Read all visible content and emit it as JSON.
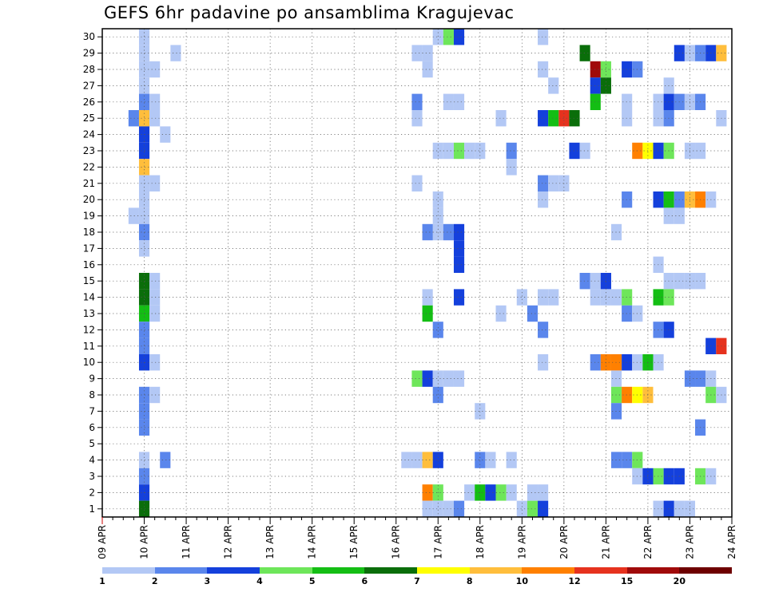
{
  "title": "GEFS 6hr padavine po ansamblima Kragujevac",
  "colors": {
    "1": "#b3c8f5",
    "2": "#5a86ec",
    "3": "#1440dc",
    "4": "#6ee65a",
    "5": "#14be14",
    "6": "#0a6e0a",
    "7": "#ffff00",
    "8": "#ffbe3c",
    "9": "#ff8000",
    "10": "#e6321e",
    "11": "#a00a0a",
    "12": "#6e0000"
  },
  "colorbar": {
    "colors": [
      "#b3c8f5",
      "#5a86ec",
      "#1440dc",
      "#6ee65a",
      "#14be14",
      "#0a6e0a",
      "#ffff00",
      "#ffbe3c",
      "#ff8000",
      "#e6321e",
      "#a00a0a",
      "#6e0000"
    ],
    "labels": [
      "1",
      "2",
      "3",
      "4",
      "5",
      "6",
      "7",
      "8",
      "10",
      "12",
      "15",
      "20"
    ]
  },
  "chart_data": {
    "type": "heatmap",
    "x_ticks": [
      "09 APR",
      "10 APR",
      "11 APR",
      "12 APR",
      "13 APR",
      "14 APR",
      "15 APR",
      "16 APR",
      "17 APR",
      "18 APR",
      "19 APR",
      "20 APR",
      "21 APR",
      "22 APR",
      "23 APR",
      "24 APR"
    ],
    "y_ticks": [
      "1",
      "2",
      "3",
      "4",
      "5",
      "6",
      "7",
      "8",
      "9",
      "10",
      "11",
      "12",
      "13",
      "14",
      "15",
      "16",
      "17",
      "18",
      "19",
      "20",
      "21",
      "22",
      "23",
      "24",
      "25",
      "26",
      "27",
      "28",
      "29",
      "30"
    ],
    "xlim": [
      "09 APR",
      "24 APR"
    ],
    "ylim": [
      0.5,
      30.5
    ],
    "time_step_hours": 6,
    "legend": "colorbar-bottom",
    "grid": true,
    "cells": [
      [
        "10 APR",
        30,
        1
      ],
      [
        "10 APR",
        29,
        1
      ],
      [
        "10 APR 18Z",
        29,
        1
      ],
      [
        "10 APR",
        28,
        1
      ],
      [
        "10 APR 06Z",
        28,
        1
      ],
      [
        "10 APR",
        27,
        1
      ],
      [
        "10 APR",
        26,
        2
      ],
      [
        "10 APR 06Z",
        26,
        1
      ],
      [
        "09 APR 18Z",
        25,
        2
      ],
      [
        "10 APR",
        25,
        8
      ],
      [
        "10 APR 06Z",
        25,
        1
      ],
      [
        "10 APR",
        24,
        3
      ],
      [
        "10 APR 12Z",
        24,
        1
      ],
      [
        "10 APR",
        23,
        3
      ],
      [
        "10 APR",
        22,
        8
      ],
      [
        "10 APR",
        21,
        1
      ],
      [
        "10 APR 06Z",
        21,
        1
      ],
      [
        "10 APR",
        20,
        1
      ],
      [
        "09 APR 18Z",
        19,
        1
      ],
      [
        "10 APR",
        19,
        1
      ],
      [
        "10 APR",
        18,
        2
      ],
      [
        "10 APR",
        17,
        1
      ],
      [
        "10 APR",
        15,
        6
      ],
      [
        "10 APR 06Z",
        15,
        1
      ],
      [
        "10 APR",
        14,
        6
      ],
      [
        "10 APR 06Z",
        14,
        1
      ],
      [
        "10 APR",
        13,
        5
      ],
      [
        "10 APR 06Z",
        13,
        1
      ],
      [
        "10 APR",
        12,
        2
      ],
      [
        "10 APR",
        11,
        2
      ],
      [
        "10 APR",
        10,
        3
      ],
      [
        "10 APR 06Z",
        10,
        1
      ],
      [
        "10 APR",
        8,
        2
      ],
      [
        "10 APR 06Z",
        8,
        1
      ],
      [
        "10 APR",
        7,
        2
      ],
      [
        "10 APR",
        6,
        2
      ],
      [
        "10 APR",
        4,
        1
      ],
      [
        "10 APR 12Z",
        4,
        2
      ],
      [
        "10 APR",
        3,
        2
      ],
      [
        "10 APR",
        2,
        3
      ],
      [
        "10 APR",
        1,
        6
      ],
      [
        "16 APR 12Z",
        29,
        1
      ],
      [
        "16 APR 18Z",
        29,
        1
      ],
      [
        "16 APR 18Z",
        28,
        1
      ],
      [
        "16 APR 12Z",
        26,
        2
      ],
      [
        "16 APR 12Z",
        25,
        1
      ],
      [
        "16 APR 12Z",
        21,
        1
      ],
      [
        "16 APR 12Z",
        9,
        4
      ],
      [
        "16 APR 06Z",
        4,
        1
      ],
      [
        "16 APR 12Z",
        4,
        1
      ],
      [
        "17 APR",
        30,
        1
      ],
      [
        "17 APR 06Z",
        30,
        4
      ],
      [
        "17 APR 12Z",
        30,
        3
      ],
      [
        "17 APR 06Z",
        26,
        1
      ],
      [
        "17 APR 12Z",
        26,
        1
      ],
      [
        "17 APR",
        23,
        1
      ],
      [
        "17 APR 06Z",
        23,
        1
      ],
      [
        "17 APR 12Z",
        23,
        4
      ],
      [
        "17 APR 18Z",
        23,
        1
      ],
      [
        "18 APR",
        23,
        1
      ],
      [
        "17 APR",
        20,
        1
      ],
      [
        "17 APR",
        19,
        1
      ],
      [
        "17 APR",
        18,
        1
      ],
      [
        "16 APR 18Z",
        18,
        2
      ],
      [
        "17 APR 06Z",
        18,
        2
      ],
      [
        "17 APR 12Z",
        18,
        3
      ],
      [
        "17 APR 12Z",
        17,
        3
      ],
      [
        "17 APR 12Z",
        16,
        3
      ],
      [
        "16 APR 18Z",
        14,
        1
      ],
      [
        "17 APR 12Z",
        14,
        3
      ],
      [
        "16 APR 18Z",
        13,
        5
      ],
      [
        "17 APR",
        12,
        2
      ],
      [
        "16 APR 18Z",
        9,
        3
      ],
      [
        "17 APR",
        9,
        1
      ],
      [
        "17 APR 06Z",
        9,
        1
      ],
      [
        "17 APR 12Z",
        9,
        1
      ],
      [
        "17 APR",
        8,
        2
      ],
      [
        "16 APR 18Z",
        4,
        8
      ],
      [
        "17 APR",
        4,
        3
      ],
      [
        "16 APR 18Z",
        2,
        9
      ],
      [
        "17 APR",
        2,
        4
      ],
      [
        "16 APR 18Z",
        1,
        1
      ],
      [
        "17 APR",
        1,
        1
      ],
      [
        "17 APR 06Z",
        1,
        1
      ],
      [
        "17 APR 12Z",
        1,
        2
      ],
      [
        "18 APR 12Z",
        25,
        1
      ],
      [
        "18 APR 18Z",
        23,
        2
      ],
      [
        "18 APR 18Z",
        22,
        1
      ],
      [
        "18 APR 12Z",
        13,
        1
      ],
      [
        "19 APR",
        14,
        1
      ],
      [
        "18 APR",
        7,
        1
      ],
      [
        "18 APR",
        4,
        2
      ],
      [
        "18 APR 06Z",
        4,
        1
      ],
      [
        "18 APR 18Z",
        4,
        1
      ],
      [
        "17 APR 18Z",
        2,
        1
      ],
      [
        "18 APR",
        2,
        5
      ],
      [
        "18 APR 06Z",
        2,
        3
      ],
      [
        "18 APR 12Z",
        2,
        4
      ],
      [
        "18 APR 18Z",
        2,
        1
      ],
      [
        "19 APR 12Z",
        30,
        1
      ],
      [
        "19 APR 12Z",
        28,
        1
      ],
      [
        "19 APR 18Z",
        27,
        1
      ],
      [
        "19 APR 12Z",
        25,
        3
      ],
      [
        "19 APR 18Z",
        25,
        5
      ],
      [
        "20 APR",
        25,
        10
      ],
      [
        "20 APR 06Z",
        25,
        6
      ],
      [
        "20 APR 12Z",
        29,
        6
      ],
      [
        "20 APR 18Z",
        28,
        11
      ],
      [
        "20 APR 18Z",
        27,
        3
      ],
      [
        "20 APR 18Z",
        26,
        5
      ],
      [
        "21 APR",
        28,
        4
      ],
      [
        "21 APR",
        27,
        6
      ],
      [
        "20 APR 06Z",
        23,
        3
      ],
      [
        "20 APR 12Z",
        23,
        1
      ],
      [
        "19 APR 12Z",
        21,
        2
      ],
      [
        "19 APR 18Z",
        21,
        1
      ],
      [
        "20 APR",
        21,
        1
      ],
      [
        "19 APR 12Z",
        20,
        1
      ],
      [
        "20 APR 12Z",
        15,
        2
      ],
      [
        "20 APR 18Z",
        15,
        1
      ],
      [
        "21 APR",
        15,
        1
      ],
      [
        "19 APR 12Z",
        14,
        1
      ],
      [
        "19 APR 18Z",
        14,
        1
      ],
      [
        "19 APR 06Z",
        13,
        2
      ],
      [
        "19 APR 12Z",
        12,
        2
      ],
      [
        "19 APR 12Z",
        10,
        1
      ],
      [
        "19 APR",
        1,
        1
      ],
      [
        "19 APR 06Z",
        1,
        4
      ],
      [
        "19 APR 12Z",
        1,
        3
      ],
      [
        "19 APR 06Z",
        2,
        1
      ],
      [
        "19 APR 12Z",
        2,
        1
      ],
      [
        "21 APR 12Z",
        28,
        3
      ],
      [
        "21 APR 18Z",
        28,
        2
      ],
      [
        "21 APR 12Z",
        26,
        1
      ],
      [
        "21 APR 12Z",
        25,
        1
      ],
      [
        "21 APR 18Z",
        23,
        9
      ],
      [
        "22 APR",
        23,
        7
      ],
      [
        "21 APR 12Z",
        20,
        2
      ],
      [
        "21 APR 06Z",
        18,
        1
      ],
      [
        "21 APR",
        15,
        3
      ],
      [
        "20 APR 18Z",
        14,
        1
      ],
      [
        "21 APR",
        14,
        1
      ],
      [
        "21 APR 06Z",
        14,
        1
      ],
      [
        "21 APR 12Z",
        14,
        4
      ],
      [
        "21 APR 12Z",
        13,
        2
      ],
      [
        "21 APR 18Z",
        13,
        1
      ],
      [
        "20 APR 18Z",
        10,
        2
      ],
      [
        "21 APR",
        10,
        9
      ],
      [
        "21 APR 06Z",
        10,
        9
      ],
      [
        "21 APR 12Z",
        10,
        3
      ],
      [
        "21 APR 18Z",
        10,
        1
      ],
      [
        "22 APR",
        10,
        5
      ],
      [
        "22 APR 06Z",
        10,
        1
      ],
      [
        "21 APR 06Z",
        9,
        1
      ],
      [
        "21 APR 06Z",
        8,
        4
      ],
      [
        "21 APR 12Z",
        8,
        9
      ],
      [
        "21 APR 18Z",
        8,
        7
      ],
      [
        "22 APR",
        8,
        8
      ],
      [
        "21 APR 06Z",
        7,
        2
      ],
      [
        "21 APR 06Z",
        4,
        2
      ],
      [
        "21 APR 12Z",
        4,
        2
      ],
      [
        "21 APR 18Z",
        4,
        4
      ],
      [
        "21 APR 18Z",
        3,
        1
      ],
      [
        "22 APR",
        3,
        3
      ],
      [
        "22 APR 06Z",
        3,
        4
      ],
      [
        "22 APR 12Z",
        3,
        3
      ],
      [
        "22 APR 18Z",
        3,
        3
      ],
      [
        "22 APR 18Z",
        29,
        3
      ],
      [
        "22 APR 12Z",
        27,
        1
      ],
      [
        "22 APR 06Z",
        26,
        1
      ],
      [
        "22 APR 12Z",
        26,
        3
      ],
      [
        "22 APR 18Z",
        26,
        2
      ],
      [
        "22 APR 06Z",
        25,
        1
      ],
      [
        "22 APR 12Z",
        25,
        2
      ],
      [
        "22 APR 06Z",
        23,
        3
      ],
      [
        "22 APR 12Z",
        23,
        4
      ],
      [
        "22 APR 06Z",
        20,
        3
      ],
      [
        "22 APR 12Z",
        20,
        5
      ],
      [
        "22 APR 18Z",
        20,
        2
      ],
      [
        "22 APR 12Z",
        19,
        1
      ],
      [
        "22 APR 18Z",
        19,
        1
      ],
      [
        "22 APR 06Z",
        16,
        1
      ],
      [
        "22 APR 12Z",
        15,
        1
      ],
      [
        "22 APR 18Z",
        15,
        1
      ],
      [
        "22 APR 06Z",
        14,
        5
      ],
      [
        "22 APR 12Z",
        14,
        4
      ],
      [
        "22 APR 06Z",
        12,
        2
      ],
      [
        "22 APR 12Z",
        12,
        3
      ],
      [
        "22 APR 06Z",
        1,
        1
      ],
      [
        "22 APR 12Z",
        1,
        3
      ],
      [
        "22 APR 18Z",
        1,
        1
      ],
      [
        "23 APR",
        29,
        1
      ],
      [
        "23 APR 06Z",
        29,
        2
      ],
      [
        "23 APR 12Z",
        29,
        3
      ],
      [
        "23 APR 18Z",
        29,
        8
      ],
      [
        "23 APR",
        26,
        1
      ],
      [
        "23 APR 06Z",
        26,
        2
      ],
      [
        "23 APR 18Z",
        25,
        1
      ],
      [
        "23 APR",
        23,
        1
      ],
      [
        "23 APR 06Z",
        23,
        1
      ],
      [
        "23 APR",
        20,
        8
      ],
      [
        "23 APR 06Z",
        20,
        9
      ],
      [
        "23 APR 12Z",
        20,
        1
      ],
      [
        "23 APR",
        15,
        1
      ],
      [
        "23 APR 06Z",
        15,
        1
      ],
      [
        "23 APR 12Z",
        11,
        3
      ],
      [
        "23 APR 18Z",
        11,
        10
      ],
      [
        "23 APR",
        9,
        2
      ],
      [
        "23 APR 06Z",
        9,
        2
      ],
      [
        "23 APR 12Z",
        9,
        1
      ],
      [
        "23 APR 12Z",
        8,
        4
      ],
      [
        "23 APR 18Z",
        8,
        1
      ],
      [
        "23 APR 06Z",
        6,
        2
      ],
      [
        "23 APR 06Z",
        3,
        4
      ],
      [
        "23 APR 12Z",
        3,
        1
      ],
      [
        "23 APR",
        1,
        1
      ]
    ]
  }
}
